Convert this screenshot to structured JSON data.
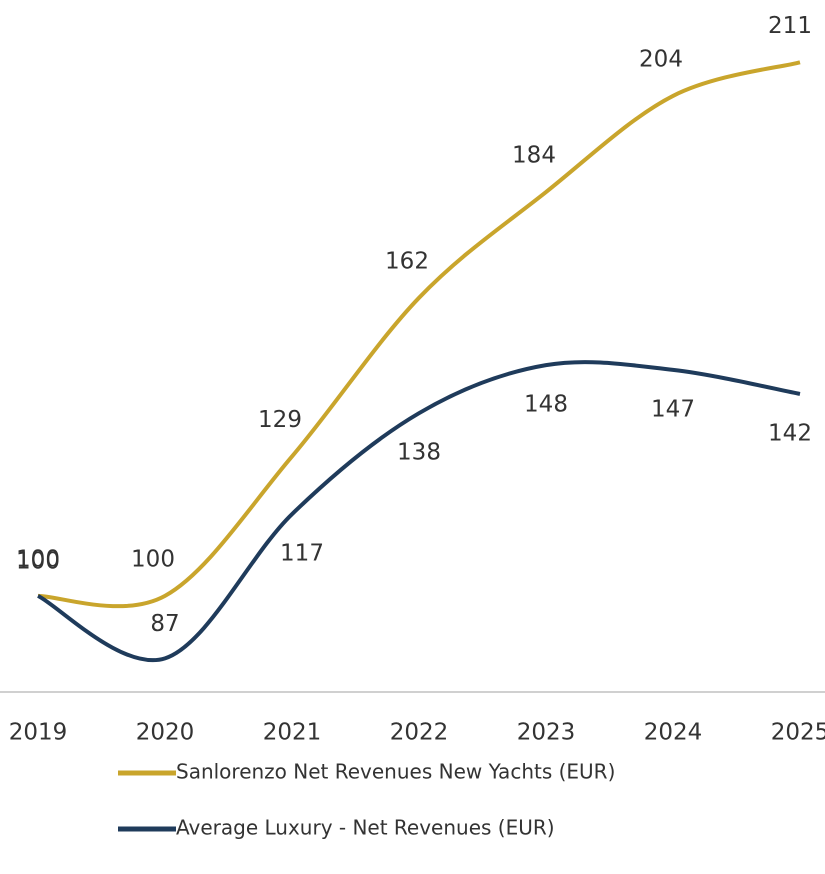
{
  "chart_data": {
    "type": "line",
    "categories": [
      "2019",
      "2020",
      "2021",
      "2022",
      "2023",
      "2024",
      "2025"
    ],
    "series": [
      {
        "name": "Sanlorenzo Net Revenues New Yachts (EUR)",
        "color": "#c9a52c",
        "values": [
          100,
          100,
          129,
          162,
          184,
          204,
          211
        ]
      },
      {
        "name": "Average Luxury - Net Revenues (EUR)",
        "color": "#1f3b5b",
        "values": [
          100,
          87,
          117,
          138,
          148,
          147,
          142
        ]
      }
    ],
    "ylim": [
      80,
      220
    ],
    "legend": "bottom",
    "smooth": true
  }
}
